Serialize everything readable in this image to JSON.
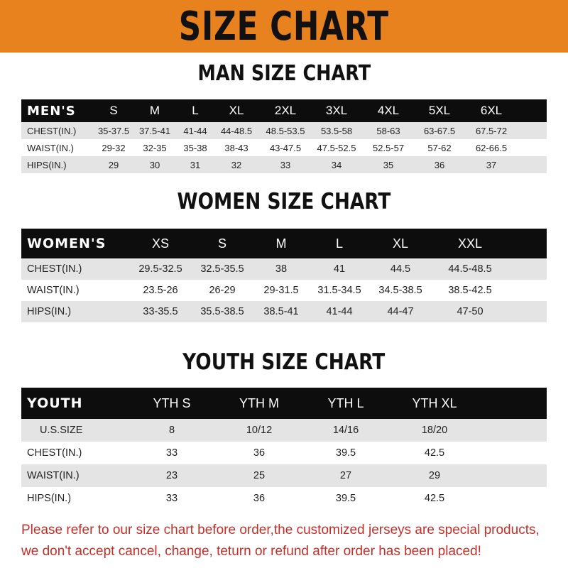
{
  "banner": "SIZE CHART",
  "men": {
    "title": "MAN SIZE CHART",
    "header": "MEN'S",
    "sizes": [
      "S",
      "M",
      "L",
      "XL",
      "2XL",
      "3XL",
      "4XL",
      "5XL",
      "6XL"
    ],
    "rows": [
      {
        "label": "CHEST(IN.)",
        "values": [
          "35-37.5",
          "37.5-41",
          "41-44",
          "44-48.5",
          "48.5-53.5",
          "53.5-58",
          "58-63",
          "63-67.5",
          "67.5-72"
        ]
      },
      {
        "label": "WAIST(IN.)",
        "values": [
          "29-32",
          "32-35",
          "35-38",
          "38-43",
          "43-47.5",
          "47.5-52.5",
          "52.5-57",
          "57-62",
          "62-66.5"
        ]
      },
      {
        "label": "HIPS(IN.)",
        "values": [
          "29",
          "30",
          "31",
          "32",
          "33",
          "34",
          "35",
          "36",
          "37"
        ]
      }
    ]
  },
  "women": {
    "title": "WOMEN SIZE CHART",
    "header": "WOMEN'S",
    "sizes": [
      "XS",
      "S",
      "M",
      "L",
      "XL",
      "XXL"
    ],
    "rows": [
      {
        "label": "CHEST(IN.)",
        "values": [
          "29.5-32.5",
          "32.5-35.5",
          "38",
          "41",
          "44.5",
          "44.5-48.5"
        ]
      },
      {
        "label": "WAIST(IN.)",
        "values": [
          "23.5-26",
          "26-29",
          "29-31.5",
          "31.5-34.5",
          "34.5-38.5",
          "38.5-42.5"
        ]
      },
      {
        "label": "HIPS(IN.)",
        "values": [
          "33-35.5",
          "35.5-38.5",
          "38.5-41",
          "41-44",
          "44-47",
          "47-50"
        ]
      }
    ]
  },
  "youth": {
    "title": "YOUTH SIZE CHART",
    "header": "YOUTH",
    "sizes": [
      "YTH S",
      "YTH M",
      "YTH L",
      "YTH XL"
    ],
    "rows": [
      {
        "label": "U.S.SIZE",
        "values": [
          "8",
          "10/12",
          "14/16",
          "18/20"
        ]
      },
      {
        "label": "CHEST(IN.)",
        "values": [
          "33",
          "36",
          "39.5",
          "42.5"
        ]
      },
      {
        "label": "WAIST(IN.)",
        "values": [
          "23",
          "25",
          "27",
          "29"
        ]
      },
      {
        "label": "HIPS(IN.)",
        "values": [
          "33",
          "36",
          "39.5",
          "42.5"
        ]
      }
    ]
  },
  "note": {
    "line1": "Please refer to our size chart before order,the customized jerseys are special products,",
    "line2": "we don't accept cancel, change, teturn or refund after order has been placed!"
  },
  "colors": {
    "banner": "#E8821E",
    "header_row": "#0d0d0d",
    "stripe": "#e4e4e4",
    "note": "#c0302a"
  }
}
